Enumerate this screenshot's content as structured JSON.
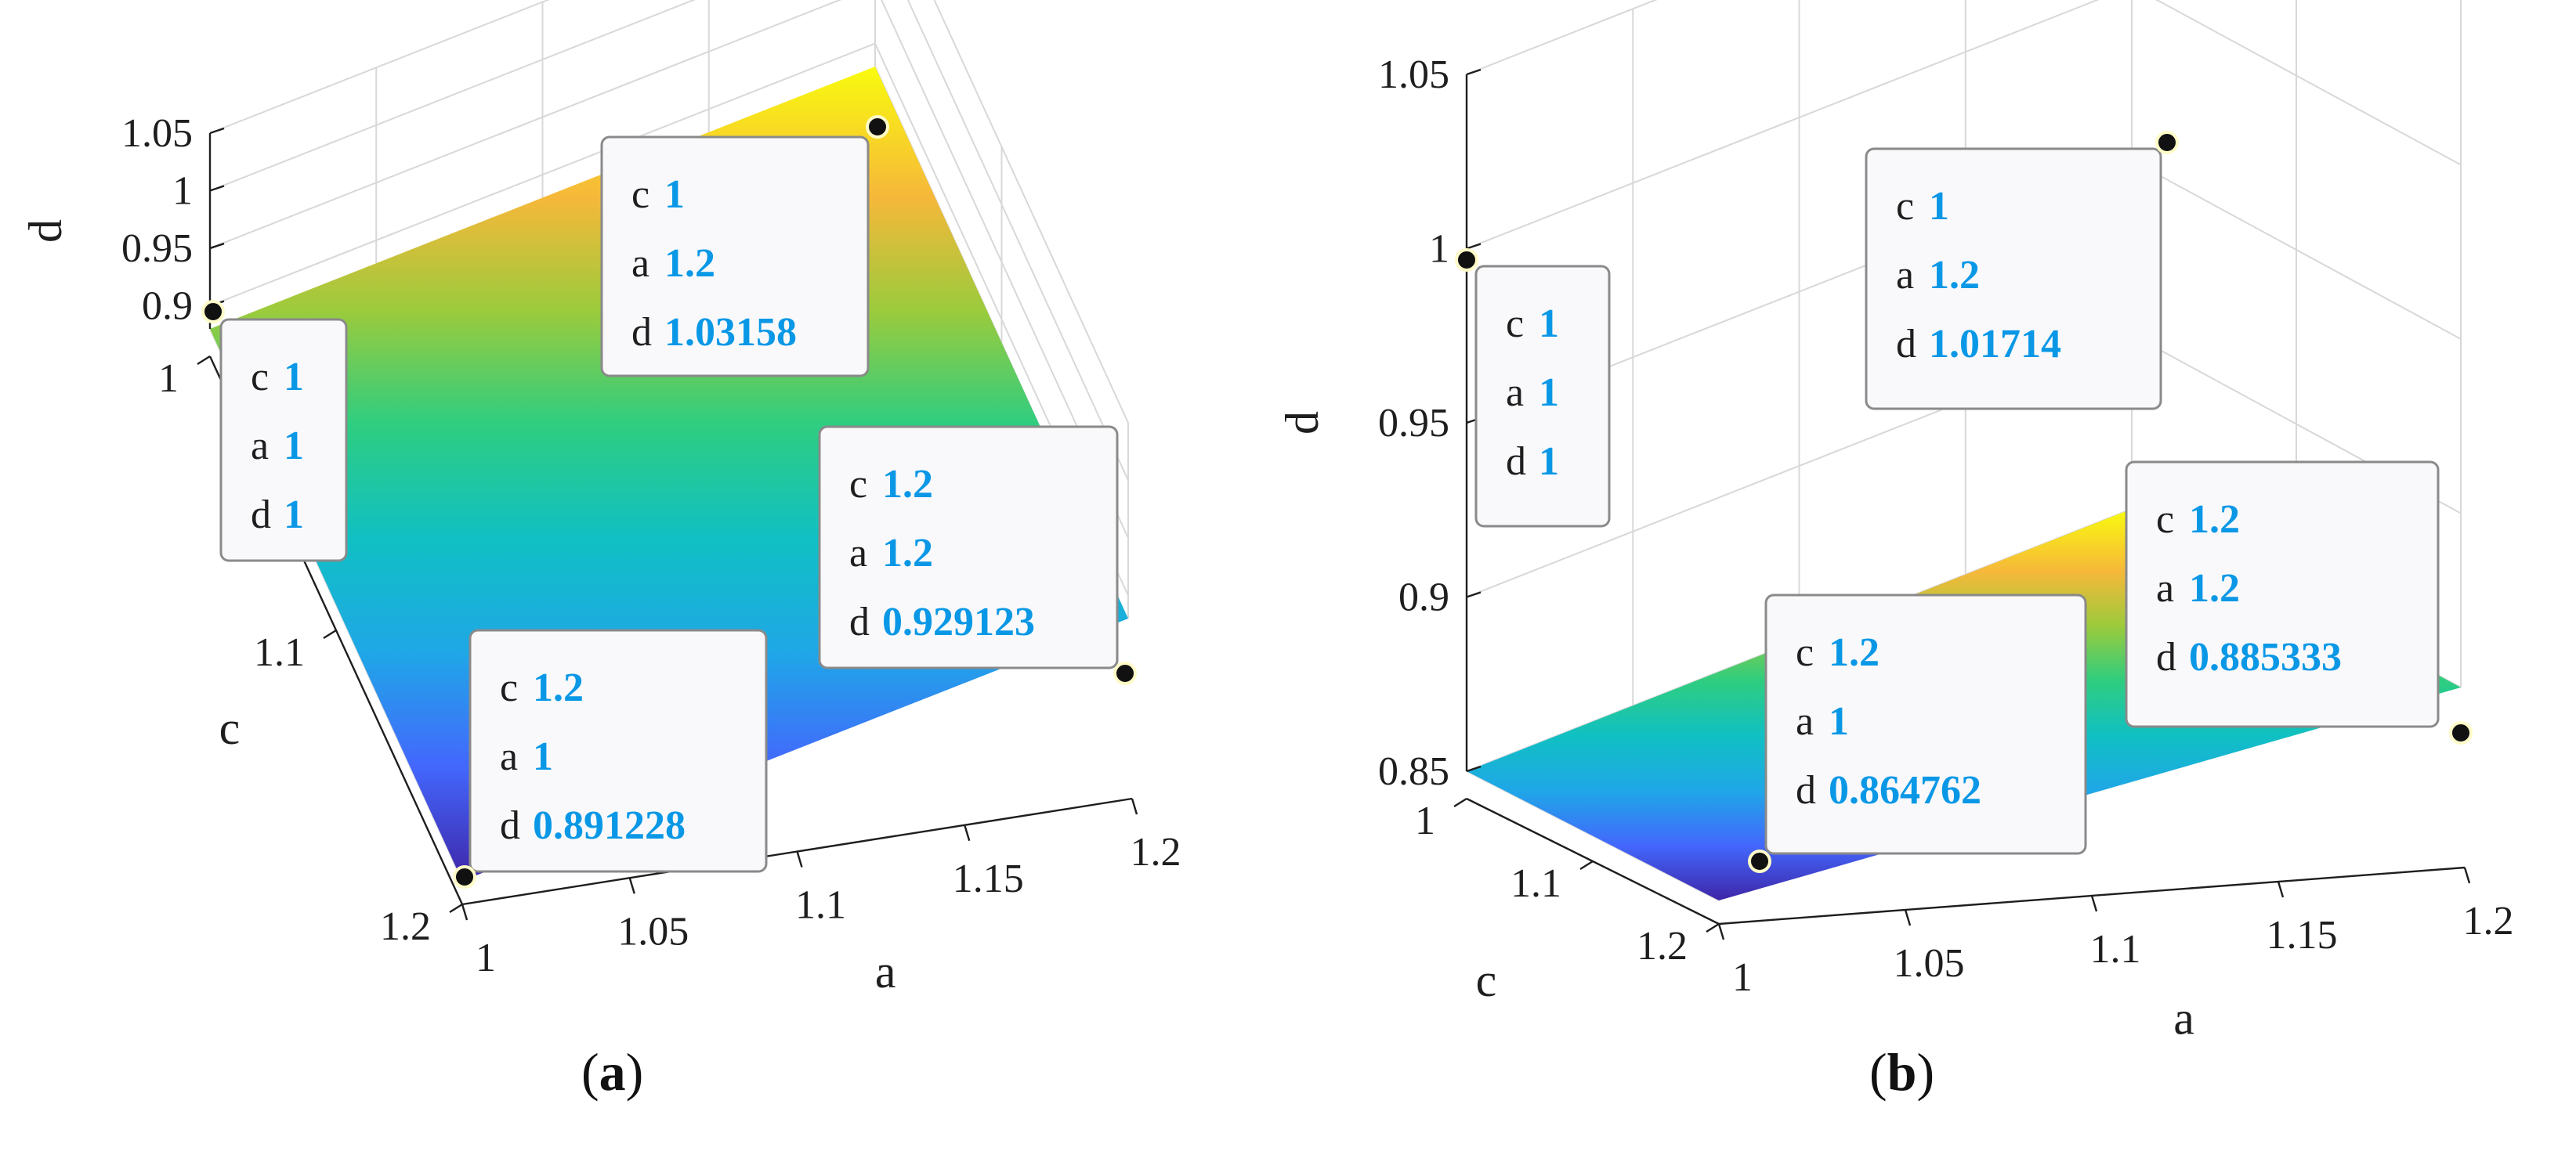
{
  "chart_data": [
    {
      "type": "surface",
      "panel_label": "a",
      "xlabel": "a",
      "ylabel": "c",
      "zlabel": "d",
      "xlim": [
        1,
        1.2
      ],
      "ylim": [
        1,
        1.2
      ],
      "zlim": [
        0.88,
        1.05
      ],
      "xticks": [
        "1",
        "1.05",
        "1.1",
        "1.15",
        "1.2"
      ],
      "yticks": [
        "1",
        "1.1",
        "1.2"
      ],
      "zticks": [
        "0.9",
        "0.95",
        "1",
        "1.05"
      ],
      "grid": true,
      "colormap": "parula",
      "points": [
        {
          "c": 1,
          "a": 1,
          "d": 1
        },
        {
          "c": 1,
          "a": 1.2,
          "d": 1.03158
        },
        {
          "c": 1.2,
          "a": 1.2,
          "d": 0.929123
        },
        {
          "c": 1.2,
          "a": 1,
          "d": 0.891228
        }
      ],
      "datatips": [
        {
          "c": "1",
          "a": "1",
          "d": "1"
        },
        {
          "c": "1",
          "a": "1.2",
          "d": "1.03158"
        },
        {
          "c": "1.2",
          "a": "1.2",
          "d": "0.929123"
        },
        {
          "c": "1.2",
          "a": "1",
          "d": "0.891228"
        }
      ]
    },
    {
      "type": "surface",
      "panel_label": "b",
      "xlabel": "a",
      "ylabel": "c",
      "zlabel": "d",
      "xlim": [
        1,
        1.2
      ],
      "ylim": [
        1,
        1.2
      ],
      "zlim": [
        0.85,
        1.05
      ],
      "xticks": [
        "1",
        "1.05",
        "1.1",
        "1.15",
        "1.2"
      ],
      "yticks": [
        "1",
        "1.1",
        "1.2"
      ],
      "zticks": [
        "0.85",
        "0.9",
        "0.95",
        "1",
        "1.05"
      ],
      "grid": true,
      "colormap": "parula",
      "points": [
        {
          "c": 1,
          "a": 1,
          "d": 1
        },
        {
          "c": 1,
          "a": 1.2,
          "d": 1.01714
        },
        {
          "c": 1.2,
          "a": 1.2,
          "d": 0.885333
        },
        {
          "c": 1.2,
          "a": 1,
          "d": 0.864762
        }
      ],
      "datatips": [
        {
          "c": "1",
          "a": "1",
          "d": "1"
        },
        {
          "c": "1",
          "a": "1.2",
          "d": "1.01714"
        },
        {
          "c": "1.2",
          "a": "1.2",
          "d": "0.885333"
        },
        {
          "c": "1.2",
          "a": "1",
          "d": "0.864762"
        }
      ]
    }
  ],
  "tip_keys": {
    "c": "c",
    "a": "a",
    "d": "d"
  }
}
